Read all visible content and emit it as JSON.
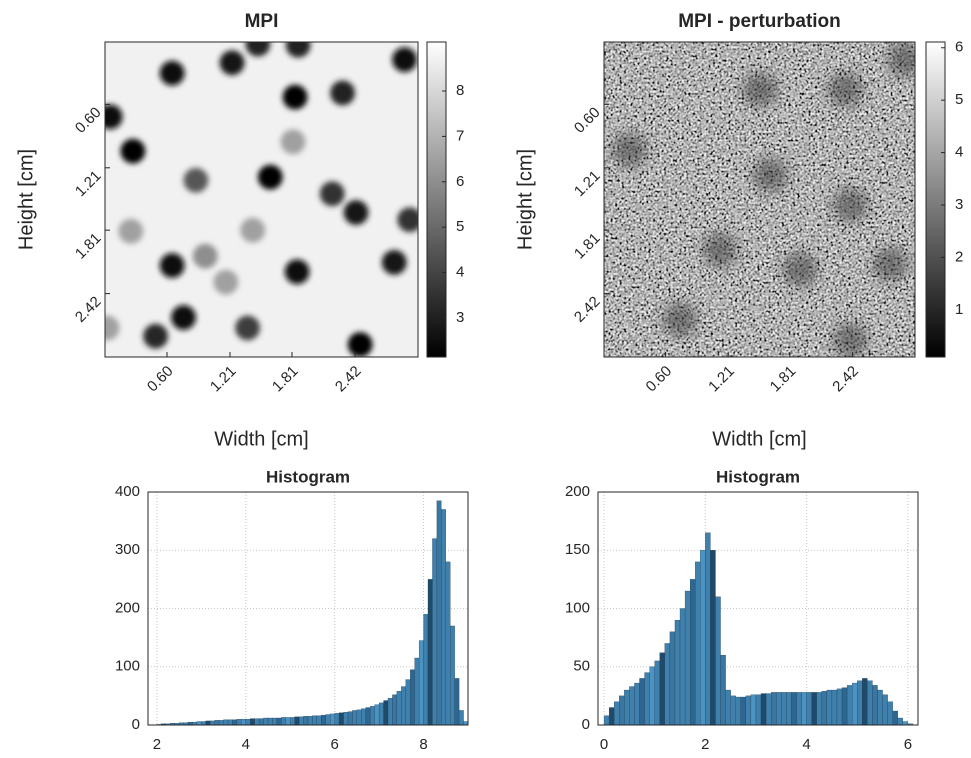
{
  "chart_data": [
    {
      "type": "image",
      "title": "MPI",
      "xlabel": "Width [cm]",
      "ylabel": "Height [cm]",
      "colormap": "gray",
      "xlim": [
        0,
        3.03
      ],
      "ylim": [
        0,
        3.03
      ],
      "xticks": [
        {
          "value": 0.6,
          "label": "0.60"
        },
        {
          "value": 1.21,
          "label": "1.21"
        },
        {
          "value": 1.81,
          "label": "1.81"
        },
        {
          "value": 2.42,
          "label": "2.42"
        }
      ],
      "yticks": [
        {
          "value": 0.6,
          "label": "0.60"
        },
        {
          "value": 1.21,
          "label": "1.21"
        },
        {
          "value": 1.81,
          "label": "1.81"
        },
        {
          "value": 2.42,
          "label": "2.42"
        }
      ],
      "clim": [
        2.14,
        9.08
      ],
      "cticks": [
        3,
        4,
        5,
        6,
        7,
        8
      ],
      "background": 8.7,
      "noise": false,
      "spots": {
        "x": [
          0.65,
          1.23,
          1.48,
          1.87,
          2.9,
          1.84,
          2.3,
          0.05,
          0.27,
          1.82,
          0.88,
          1.6,
          2.2,
          2.43,
          2.95,
          0.25,
          1.43,
          0.97,
          0.65,
          1.86,
          2.8,
          1.17,
          0.76,
          0.49,
          1.38,
          2.47,
          0.02
        ],
        "y": [
          0.3,
          0.2,
          0.02,
          0.03,
          0.17,
          0.53,
          0.49,
          0.72,
          1.05,
          0.96,
          1.33,
          1.3,
          1.46,
          1.64,
          1.71,
          1.82,
          1.81,
          2.06,
          2.15,
          2.21,
          2.12,
          2.31,
          2.65,
          2.83,
          2.75,
          2.91,
          2.75
        ],
        "values": [
          2.5,
          2.8,
          3,
          3,
          2.6,
          2.2,
          3,
          2.6,
          2.3,
          6.5,
          4.5,
          2.3,
          3.5,
          2.8,
          3.5,
          6.5,
          6.5,
          6,
          2.5,
          2.6,
          2.7,
          6.5,
          2.6,
          3.2,
          3.8,
          2.2,
          6.5
        ]
      }
    },
    {
      "type": "image",
      "title": "MPI - perturbation",
      "xlabel": "Width [cm]",
      "ylabel": "Height [cm]",
      "colormap": "gray",
      "xlim": [
        0,
        3.03
      ],
      "ylim": [
        0,
        3.03
      ],
      "xticks": [
        {
          "value": 0.6,
          "label": "0.60"
        },
        {
          "value": 1.21,
          "label": "1.21"
        },
        {
          "value": 1.81,
          "label": "1.81"
        },
        {
          "value": 2.42,
          "label": "2.42"
        }
      ],
      "yticks": [
        {
          "value": 0.6,
          "label": "0.60"
        },
        {
          "value": 1.21,
          "label": "1.21"
        },
        {
          "value": 1.81,
          "label": "1.81"
        },
        {
          "value": 2.42,
          "label": "2.42"
        }
      ],
      "clim": [
        0.1,
        6.11
      ],
      "cticks": [
        1,
        2,
        3,
        4,
        5,
        6
      ],
      "background": 3,
      "noise": true,
      "spots": {
        "x": [
          0.25,
          1.62,
          2.4,
          1.91,
          2.79,
          2.4,
          0.74,
          1.52,
          2.35,
          2.93,
          1.13
        ],
        "y": [
          1.04,
          1.28,
          1.57,
          2.19,
          2.14,
          2.87,
          2.67,
          0.46,
          0.46,
          0.17,
          2.0
        ],
        "values": [
          1.5,
          1.5,
          1.5,
          1.5,
          1.5,
          1.5,
          1.5,
          1.5,
          1.5,
          1.5,
          1.5
        ]
      }
    },
    {
      "type": "histogram",
      "title": "Histogram",
      "color": "#3f80ad",
      "grid": true,
      "xlim": [
        1.8,
        9
      ],
      "ylim": [
        0,
        400
      ],
      "xticks": [
        2,
        4,
        6,
        8
      ],
      "yticks": [
        0,
        100,
        200,
        300,
        400
      ],
      "bins": [
        2.0,
        2.1,
        2.2,
        2.3,
        2.4,
        2.5,
        2.6,
        2.7,
        2.8,
        2.9,
        3.0,
        3.1,
        3.2,
        3.3,
        3.4,
        3.5,
        3.6,
        3.7,
        3.8,
        3.9,
        4.0,
        4.1,
        4.2,
        4.3,
        4.4,
        4.5,
        4.6,
        4.7,
        4.8,
        4.9,
        5.0,
        5.1,
        5.2,
        5.3,
        5.4,
        5.5,
        5.6,
        5.7,
        5.8,
        5.9,
        6.0,
        6.1,
        6.2,
        6.3,
        6.4,
        6.5,
        6.6,
        6.7,
        6.8,
        6.9,
        7.0,
        7.1,
        7.2,
        7.3,
        7.4,
        7.5,
        7.6,
        7.7,
        7.8,
        7.9,
        8.0,
        8.1,
        8.2,
        8.3,
        8.4,
        8.5,
        8.6,
        8.7,
        8.8,
        8.9,
        9.0
      ],
      "values": [
        1,
        2,
        2,
        3,
        3,
        4,
        4,
        5,
        5,
        6,
        6,
        7,
        7,
        8,
        8,
        9,
        9,
        9,
        10,
        10,
        10,
        11,
        11,
        11,
        12,
        12,
        12,
        12,
        13,
        13,
        13,
        14,
        14,
        15,
        15,
        16,
        16,
        17,
        18,
        19,
        20,
        21,
        22,
        23,
        25,
        26,
        28,
        30,
        32,
        35,
        38,
        42,
        46,
        52,
        58,
        66,
        78,
        95,
        115,
        145,
        190,
        250,
        320,
        385,
        370,
        280,
        170,
        80,
        25,
        6
      ]
    },
    {
      "type": "histogram",
      "title": "Histogram",
      "color": "#3f80ad",
      "grid": true,
      "xlim": [
        -0.12,
        6.2
      ],
      "ylim": [
        0,
        200
      ],
      "xticks": [
        0,
        2,
        4,
        6
      ],
      "yticks": [
        0,
        50,
        100,
        150,
        200
      ],
      "bins": [
        0.0,
        0.1,
        0.2,
        0.3,
        0.4,
        0.5,
        0.6,
        0.7,
        0.8,
        0.9,
        1.0,
        1.1,
        1.2,
        1.3,
        1.4,
        1.5,
        1.6,
        1.7,
        1.8,
        1.9,
        2.0,
        2.1,
        2.2,
        2.3,
        2.4,
        2.5,
        2.6,
        2.7,
        2.8,
        2.9,
        3.0,
        3.1,
        3.2,
        3.3,
        3.4,
        3.5,
        3.6,
        3.7,
        3.8,
        3.9,
        4.0,
        4.1,
        4.2,
        4.3,
        4.4,
        4.5,
        4.6,
        4.7,
        4.8,
        4.9,
        5.0,
        5.1,
        5.2,
        5.3,
        5.4,
        5.5,
        5.6,
        5.7,
        5.8,
        5.9,
        6.0,
        6.1,
        6.2
      ],
      "values": [
        8,
        15,
        20,
        25,
        30,
        33,
        36,
        40,
        45,
        50,
        55,
        62,
        70,
        80,
        90,
        100,
        115,
        125,
        140,
        150,
        165,
        150,
        110,
        60,
        30,
        25,
        24,
        24,
        25,
        26,
        26,
        27,
        27,
        28,
        28,
        28,
        28,
        28,
        28,
        28,
        28,
        28,
        28,
        29,
        30,
        30,
        31,
        32,
        34,
        36,
        38,
        40,
        38,
        34,
        30,
        26,
        20,
        12,
        6,
        3,
        1,
        0
      ]
    }
  ]
}
